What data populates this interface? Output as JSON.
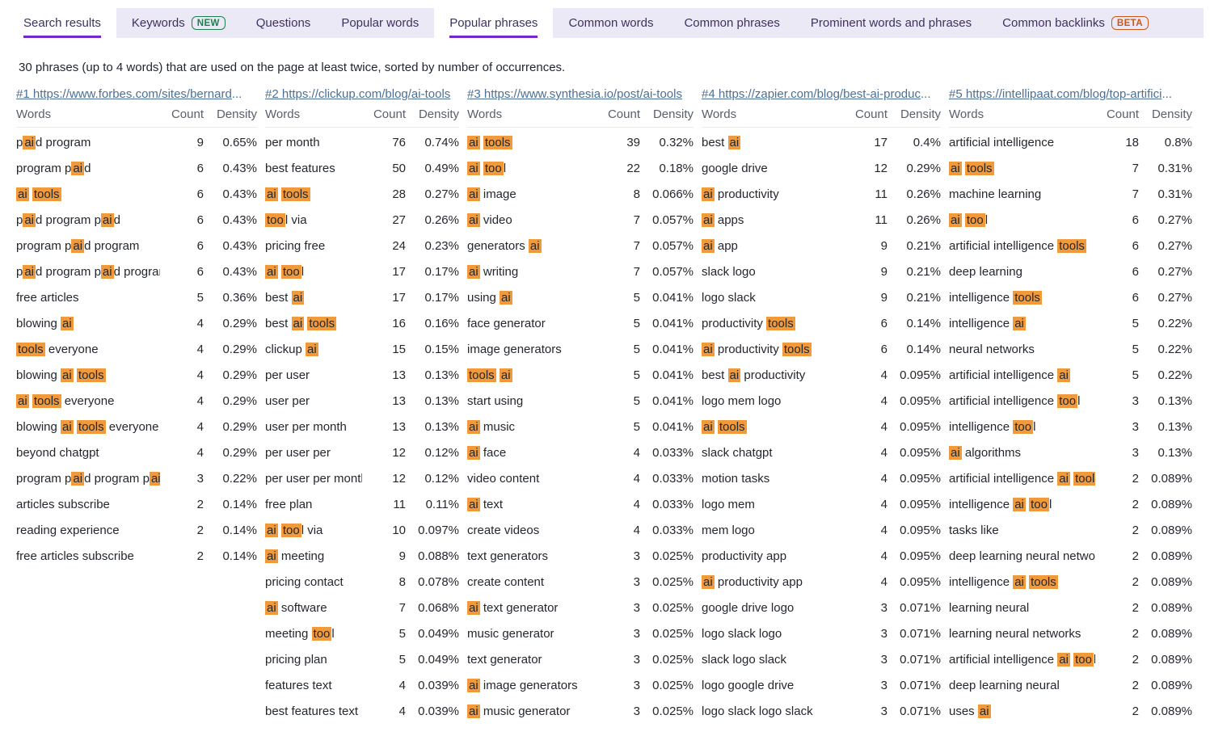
{
  "tabs": [
    {
      "label": "Search results",
      "active": true
    },
    {
      "label": "Keywords",
      "badge": "NEW"
    },
    {
      "label": "Questions"
    },
    {
      "label": "Popular words"
    },
    {
      "label": "Popular phrases",
      "active": true
    },
    {
      "label": "Common words"
    },
    {
      "label": "Common phrases"
    },
    {
      "label": "Prominent words and phrases"
    },
    {
      "label": "Common backlinks",
      "badge": "BETA"
    }
  ],
  "subtitle": "30 phrases (up to 4 words) that are used on the page at least twice, sorted by number of occurrences.",
  "table": {
    "headers": {
      "words": "Words",
      "count": "Count",
      "density": "Density"
    },
    "highlight_note": "segments in [brackets] are keyword-highlighted",
    "columns": [
      {
        "rank_url": "#1 https://www.forbes.com/sites/bernard...",
        "rows": [
          [
            "p[ai]d program",
            "9",
            "0.65%"
          ],
          [
            "program p[ai]d",
            "6",
            "0.43%"
          ],
          [
            "[ai] [tools]",
            "6",
            "0.43%"
          ],
          [
            "p[ai]d program p[ai]d",
            "6",
            "0.43%"
          ],
          [
            "program p[ai]d program",
            "6",
            "0.43%"
          ],
          [
            "p[ai]d program p[ai]d program",
            "6",
            "0.43%"
          ],
          [
            "free articles",
            "5",
            "0.36%"
          ],
          [
            "blowing [ai]",
            "4",
            "0.29%"
          ],
          [
            "[tools] everyone",
            "4",
            "0.29%"
          ],
          [
            "blowing [ai] [tools]",
            "4",
            "0.29%"
          ],
          [
            "[ai] [tools] everyone",
            "4",
            "0.29%"
          ],
          [
            "blowing [ai] [tools] everyone",
            "4",
            "0.29%"
          ],
          [
            "beyond chatgpt",
            "4",
            "0.29%"
          ],
          [
            "program p[ai]d program p[ai]d",
            "3",
            "0.22%"
          ],
          [
            "articles subscribe",
            "2",
            "0.14%"
          ],
          [
            "reading experience",
            "2",
            "0.14%"
          ],
          [
            "free articles subscribe",
            "2",
            "0.14%"
          ]
        ]
      },
      {
        "rank_url": "#2 https://clickup.com/blog/ai-tools",
        "rows": [
          [
            "per month",
            "76",
            "0.74%"
          ],
          [
            "best features",
            "50",
            "0.49%"
          ],
          [
            "[ai] [tools]",
            "28",
            "0.27%"
          ],
          [
            "[too]l via",
            "27",
            "0.26%"
          ],
          [
            "pricing free",
            "24",
            "0.23%"
          ],
          [
            "[ai] [too]l",
            "17",
            "0.17%"
          ],
          [
            "best [ai]",
            "17",
            "0.17%"
          ],
          [
            "best [ai] [tools]",
            "16",
            "0.16%"
          ],
          [
            "clickup [ai]",
            "15",
            "0.15%"
          ],
          [
            "per user",
            "13",
            "0.13%"
          ],
          [
            "user per",
            "13",
            "0.13%"
          ],
          [
            "user per month",
            "13",
            "0.13%"
          ],
          [
            "per user per",
            "12",
            "0.12%"
          ],
          [
            "per user per month",
            "12",
            "0.12%"
          ],
          [
            "free plan",
            "11",
            "0.11%"
          ],
          [
            "[ai] [too]l via",
            "10",
            "0.097%"
          ],
          [
            "[ai] meeting",
            "9",
            "0.088%"
          ],
          [
            "pricing contact",
            "8",
            "0.078%"
          ],
          [
            "[ai] software",
            "7",
            "0.068%"
          ],
          [
            "meeting [too]l",
            "5",
            "0.049%"
          ],
          [
            "pricing plan",
            "5",
            "0.049%"
          ],
          [
            "features text",
            "4",
            "0.039%"
          ],
          [
            "best features text",
            "4",
            "0.039%"
          ]
        ]
      },
      {
        "rank_url": "#3 https://www.synthesia.io/post/ai-tools",
        "rows": [
          [
            "[ai] [tools]",
            "39",
            "0.32%"
          ],
          [
            "[ai] [too]l",
            "22",
            "0.18%"
          ],
          [
            "[ai] image",
            "8",
            "0.066%"
          ],
          [
            "[ai] video",
            "7",
            "0.057%"
          ],
          [
            "generators [ai]",
            "7",
            "0.057%"
          ],
          [
            "[ai] writing",
            "7",
            "0.057%"
          ],
          [
            "using [ai]",
            "5",
            "0.041%"
          ],
          [
            "face generator",
            "5",
            "0.041%"
          ],
          [
            "image generators",
            "5",
            "0.041%"
          ],
          [
            "[tools] [ai]",
            "5",
            "0.041%"
          ],
          [
            "start using",
            "5",
            "0.041%"
          ],
          [
            "[ai] music",
            "5",
            "0.041%"
          ],
          [
            "[ai] face",
            "4",
            "0.033%"
          ],
          [
            "video content",
            "4",
            "0.033%"
          ],
          [
            "[ai] text",
            "4",
            "0.033%"
          ],
          [
            "create videos",
            "4",
            "0.033%"
          ],
          [
            "text generators",
            "3",
            "0.025%"
          ],
          [
            "create content",
            "3",
            "0.025%"
          ],
          [
            "[ai] text generator",
            "3",
            "0.025%"
          ],
          [
            "music generator",
            "3",
            "0.025%"
          ],
          [
            "text generator",
            "3",
            "0.025%"
          ],
          [
            "[ai] image generators",
            "3",
            "0.025%"
          ],
          [
            "[ai] music generator",
            "3",
            "0.025%"
          ]
        ]
      },
      {
        "rank_url": "#4 https://zapier.com/blog/best-ai-produc...",
        "rows": [
          [
            "best [ai]",
            "17",
            "0.4%"
          ],
          [
            "google drive",
            "12",
            "0.29%"
          ],
          [
            "[ai] productivity",
            "11",
            "0.26%"
          ],
          [
            "[ai] apps",
            "11",
            "0.26%"
          ],
          [
            "[ai] app",
            "9",
            "0.21%"
          ],
          [
            "slack logo",
            "9",
            "0.21%"
          ],
          [
            "logo slack",
            "9",
            "0.21%"
          ],
          [
            "productivity [tools]",
            "6",
            "0.14%"
          ],
          [
            "[ai] productivity [tools]",
            "6",
            "0.14%"
          ],
          [
            "best [ai] productivity",
            "4",
            "0.095%"
          ],
          [
            "logo mem logo",
            "4",
            "0.095%"
          ],
          [
            "[ai] [tools]",
            "4",
            "0.095%"
          ],
          [
            "slack chatgpt",
            "4",
            "0.095%"
          ],
          [
            "motion tasks",
            "4",
            "0.095%"
          ],
          [
            "logo mem",
            "4",
            "0.095%"
          ],
          [
            "mem logo",
            "4",
            "0.095%"
          ],
          [
            "productivity app",
            "4",
            "0.095%"
          ],
          [
            "[ai] productivity app",
            "4",
            "0.095%"
          ],
          [
            "google drive logo",
            "3",
            "0.071%"
          ],
          [
            "logo slack logo",
            "3",
            "0.071%"
          ],
          [
            "slack logo slack",
            "3",
            "0.071%"
          ],
          [
            "logo google drive",
            "3",
            "0.071%"
          ],
          [
            "logo slack logo slack",
            "3",
            "0.071%"
          ]
        ]
      },
      {
        "rank_url": "#5 https://intellipaat.com/blog/top-artifici...",
        "rows": [
          [
            "artificial intelligence",
            "18",
            "0.8%"
          ],
          [
            "[ai] [tools]",
            "7",
            "0.31%"
          ],
          [
            "machine learning",
            "7",
            "0.31%"
          ],
          [
            "[ai] [too]l",
            "6",
            "0.27%"
          ],
          [
            "artificial intelligence [tools]",
            "6",
            "0.27%"
          ],
          [
            "deep learning",
            "6",
            "0.27%"
          ],
          [
            "intelligence [tools]",
            "6",
            "0.27%"
          ],
          [
            "intelligence [ai]",
            "5",
            "0.22%"
          ],
          [
            "neural networks",
            "5",
            "0.22%"
          ],
          [
            "artificial intelligence [ai]",
            "5",
            "0.22%"
          ],
          [
            "artificial intelligence [too]l",
            "3",
            "0.13%"
          ],
          [
            "intelligence [too]l",
            "3",
            "0.13%"
          ],
          [
            "[ai] algorithms",
            "3",
            "0.13%"
          ],
          [
            "artificial intelligence [ai] [tools]",
            "2",
            "0.089%"
          ],
          [
            "intelligence [ai] [too]l",
            "2",
            "0.089%"
          ],
          [
            "tasks like",
            "2",
            "0.089%"
          ],
          [
            "deep learning neural networks",
            "2",
            "0.089%"
          ],
          [
            "intelligence [ai] [tools]",
            "2",
            "0.089%"
          ],
          [
            "learning neural",
            "2",
            "0.089%"
          ],
          [
            "learning neural networks",
            "2",
            "0.089%"
          ],
          [
            "artificial intelligence [ai] [too]l",
            "2",
            "0.089%"
          ],
          [
            "deep learning neural",
            "2",
            "0.089%"
          ],
          [
            "uses [ai]",
            "2",
            "0.089%"
          ]
        ]
      }
    ]
  },
  "colors": {
    "highlight": "#F09A3B",
    "tab_underline": "#7527CF",
    "tab_bg": "#ECE9F6",
    "link": "#4B7095",
    "badge_new": "#1D7F4F",
    "badge_beta": "#C9571C",
    "text": "#23272E",
    "muted": "#57606C",
    "rule": "#E8EBF0"
  }
}
